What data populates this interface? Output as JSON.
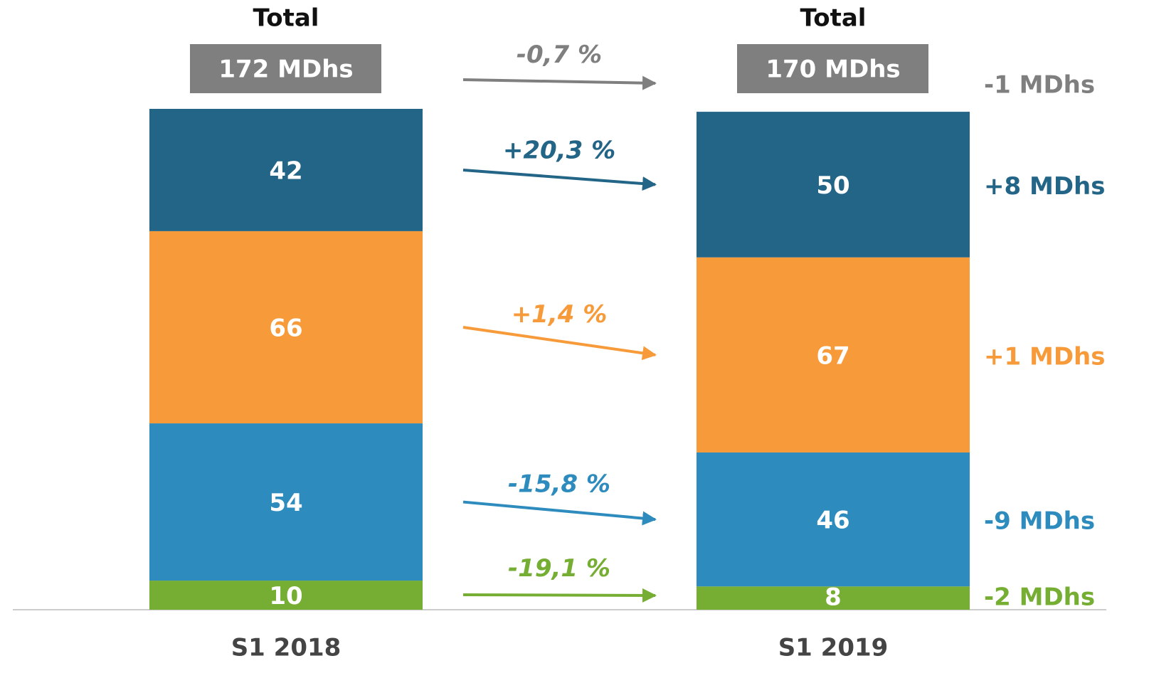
{
  "chart_data": {
    "type": "stacked_bar",
    "categories": [
      "S1 2018",
      "S1 2019"
    ],
    "ylim": [
      0,
      172
    ],
    "series": [
      {
        "color": "#76ad33",
        "values": [
          10,
          8
        ],
        "growth": -19.1,
        "growth_label": "-19,1 %",
        "delta": -2,
        "delta_label": "-2 MDhs"
      },
      {
        "color": "#2e8bbd",
        "values": [
          54,
          46
        ],
        "growth": -15.8,
        "growth_label": "-15,8 %",
        "delta": -9,
        "delta_label": "-9 MDhs"
      },
      {
        "color": "#f79b3a",
        "values": [
          66,
          67
        ],
        "growth": 1.4,
        "growth_label": "+1,4 %",
        "delta": 1,
        "delta_label": "+1 MDhs"
      },
      {
        "color": "#236587",
        "values": [
          42,
          50
        ],
        "growth": 20.3,
        "growth_label": "+20,3 %",
        "delta": 8,
        "delta_label": "+8 MDhs"
      }
    ],
    "total": {
      "label": "Total",
      "color": "#7f7f7f",
      "values": [
        172,
        170
      ],
      "value_labels": [
        "172 MDhs",
        "170 MDhs"
      ],
      "growth": -0.7,
      "growth_label": "-0,7 %",
      "delta": -1,
      "delta_label": "-1 MDhs"
    }
  }
}
